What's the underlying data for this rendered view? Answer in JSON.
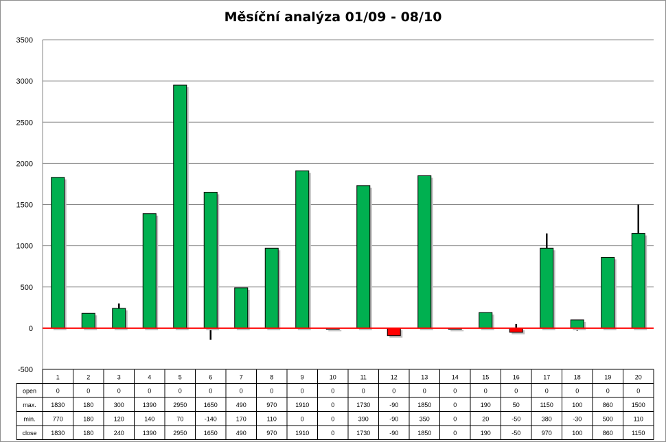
{
  "chart_data": {
    "type": "candlestick",
    "title": "Měsíční analýza 01/09 - 08/10",
    "ylim": [
      -500,
      3500
    ],
    "yticks": [
      -500,
      0,
      500,
      1000,
      1500,
      2000,
      2500,
      3000,
      3500
    ],
    "grid": true,
    "categories": [
      "1",
      "2",
      "3",
      "4",
      "5",
      "6",
      "7",
      "8",
      "9",
      "10",
      "11",
      "12",
      "13",
      "14",
      "15",
      "16",
      "17",
      "18",
      "19",
      "20"
    ],
    "row_labels": [
      "open",
      "max.",
      "min.",
      "close"
    ],
    "open": [
      0,
      0,
      0,
      0,
      0,
      0,
      0,
      0,
      0,
      0,
      0,
      0,
      0,
      0,
      0,
      0,
      0,
      0,
      0,
      0
    ],
    "max": [
      1830,
      180,
      300,
      1390,
      2950,
      1650,
      490,
      970,
      1910,
      0,
      1730,
      -90,
      1850,
      0,
      190,
      50,
      1150,
      100,
      860,
      1500
    ],
    "min": [
      770,
      180,
      120,
      140,
      70,
      -140,
      170,
      110,
      0,
      0,
      390,
      -90,
      350,
      0,
      20,
      -50,
      380,
      -30,
      500,
      110
    ],
    "close": [
      1830,
      180,
      240,
      1390,
      2950,
      1650,
      490,
      970,
      1910,
      0,
      1730,
      -90,
      1850,
      0,
      190,
      -50,
      970,
      100,
      860,
      1150
    ],
    "colors": {
      "up": "#00b050",
      "down": "#ff0000",
      "zero_line": "#ff0000",
      "grid": "#868686"
    }
  }
}
